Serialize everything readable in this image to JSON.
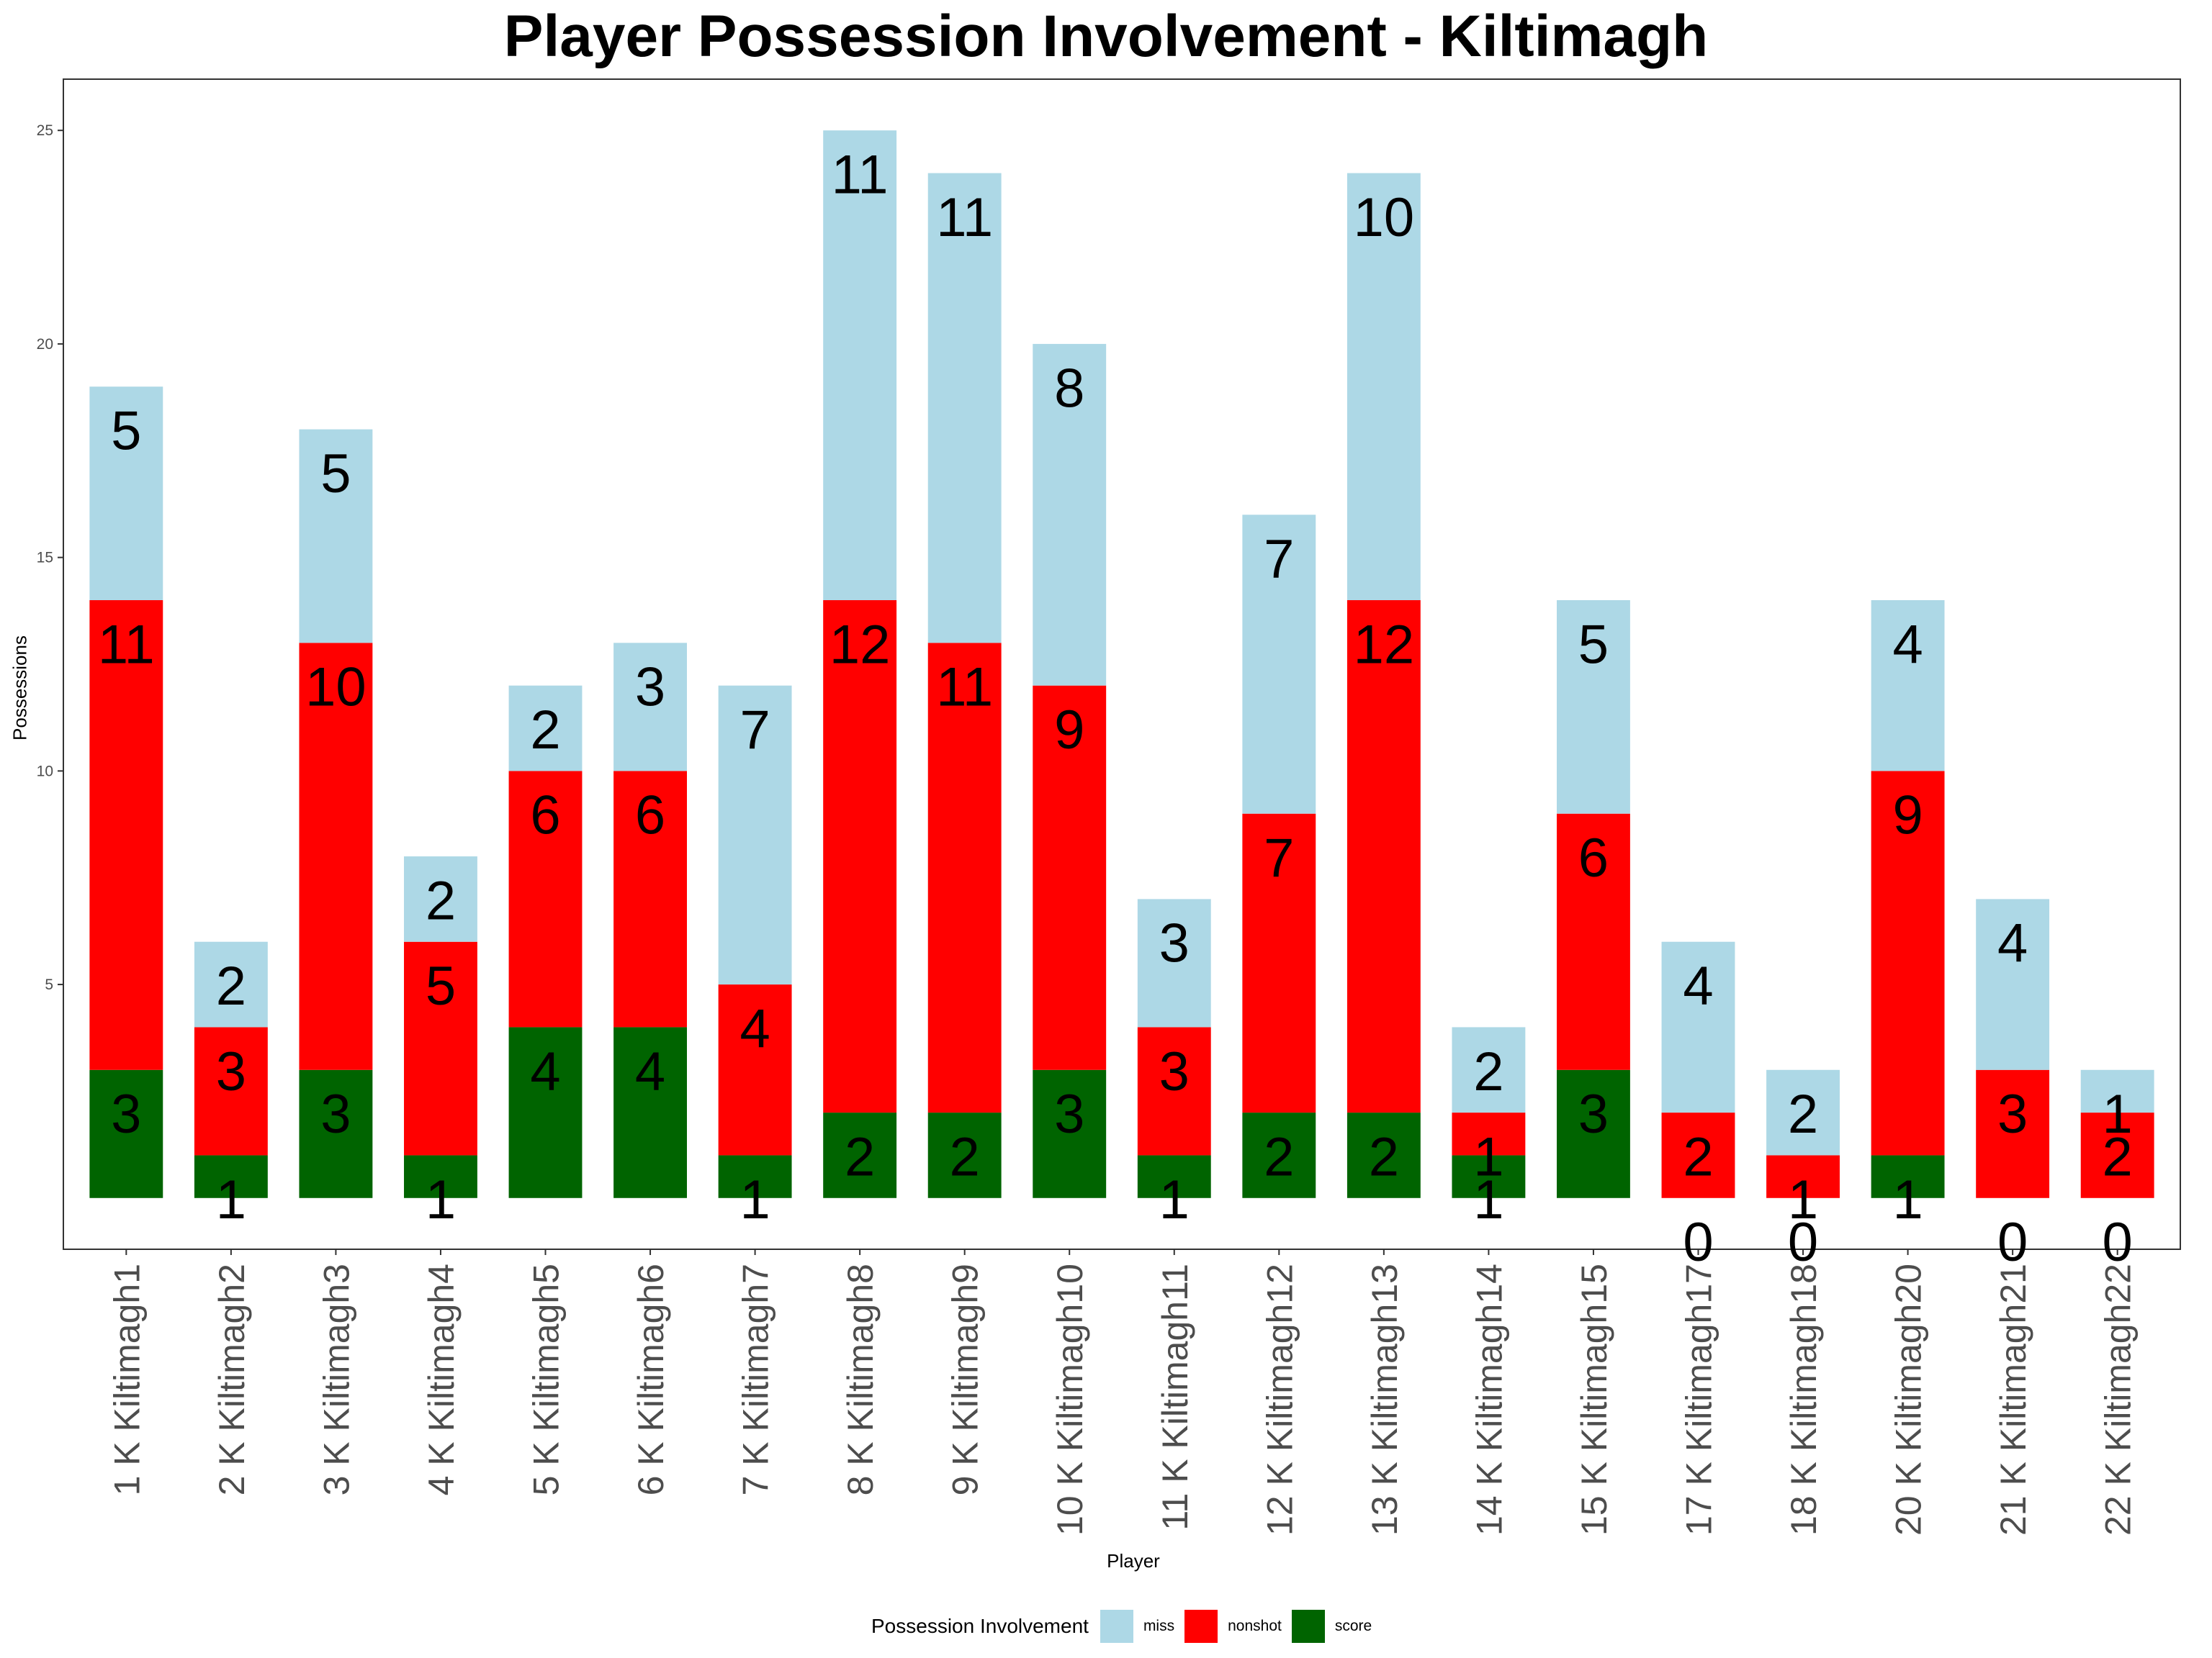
{
  "chart_data": {
    "type": "bar",
    "stacked": true,
    "title": "Player Possession Involvement - Kiltimagh",
    "xlabel": "Player",
    "ylabel": "Possessions",
    "ylim": [
      -1.2,
      26.2
    ],
    "y_ticks": [
      5,
      10,
      15,
      20,
      25
    ],
    "grid": false,
    "legend_position": "bottom",
    "categories": [
      "1 K Kiltimagh1",
      "2 K Kiltimagh2",
      "3 K Kiltimagh3",
      "4 K Kiltimagh4",
      "5 K Kiltimagh5",
      "6 K Kiltimagh6",
      "7 K Kiltimagh7",
      "8 K Kiltimagh8",
      "9 K Kiltimagh9",
      "10 K Kiltimagh10",
      "11 K Kiltimagh11",
      "12 K Kiltimagh12",
      "13 K Kiltimagh13",
      "14 K Kiltimagh14",
      "15 K Kiltimagh15",
      "17 K Kiltimagh17",
      "18 K Kiltimagh18",
      "20 K Kiltimagh20",
      "21 K Kiltimagh21",
      "22 K Kiltimagh22"
    ],
    "series": [
      {
        "name": "score",
        "color": "#006400",
        "values": [
          3,
          1,
          3,
          1,
          4,
          4,
          1,
          2,
          2,
          3,
          1,
          2,
          2,
          1,
          3,
          0,
          0,
          1,
          0,
          0
        ]
      },
      {
        "name": "nonshot",
        "color": "#FF0000",
        "values": [
          11,
          3,
          10,
          5,
          6,
          6,
          4,
          12,
          11,
          9,
          3,
          7,
          12,
          1,
          6,
          2,
          1,
          9,
          3,
          2
        ]
      },
      {
        "name": "miss",
        "color": "#ADD8E6",
        "values": [
          5,
          2,
          5,
          2,
          2,
          3,
          7,
          11,
          11,
          8,
          3,
          7,
          10,
          2,
          5,
          4,
          2,
          4,
          4,
          1
        ]
      }
    ],
    "legend": {
      "title": "Possession Involvement",
      "entries": [
        "miss",
        "nonshot",
        "score"
      ]
    }
  }
}
